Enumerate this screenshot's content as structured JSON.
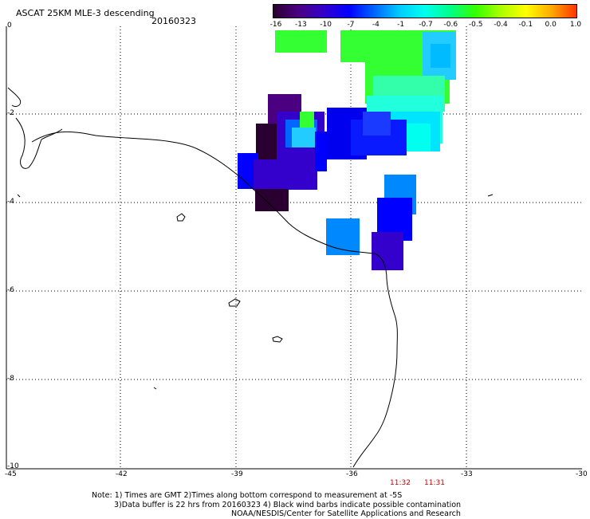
{
  "header": {
    "title": "ASCAT 25KM MLE-3 descending",
    "date": "20160323"
  },
  "colorbar": {
    "labels": [
      "-16",
      "-13",
      "-10",
      "-7",
      "-4",
      "-1",
      "-0.7",
      "-0.6",
      "-0.5",
      "-0.4",
      "-0.1",
      "0.0",
      "1.0"
    ],
    "colors": [
      "#2a0030",
      "#4b0082",
      "#3300cc",
      "#0000ff",
      "#0066ff",
      "#00ccff",
      "#00ffee",
      "#00ff88",
      "#33ff00",
      "#aaff00",
      "#ffff00",
      "#ffaa00",
      "#ff3300"
    ]
  },
  "axes": {
    "x_ticks": [
      "-45",
      "-42",
      "-39",
      "-36",
      "-33",
      "-30"
    ],
    "y_ticks": [
      "0",
      "-2",
      "-4",
      "-6",
      "-8",
      "-10"
    ]
  },
  "times": [
    "11:32",
    "11:31"
  ],
  "notes": {
    "line1": "Note: 1) Times are GMT 2)Times along bottom correspond to measurement at -5S",
    "line2": "3)Data buffer is 22 hrs from 20160323 4) Black wind barbs indicate possible contamination",
    "line3": "NOAA/NESDIS/Center for Satellite Applications and Research"
  }
}
